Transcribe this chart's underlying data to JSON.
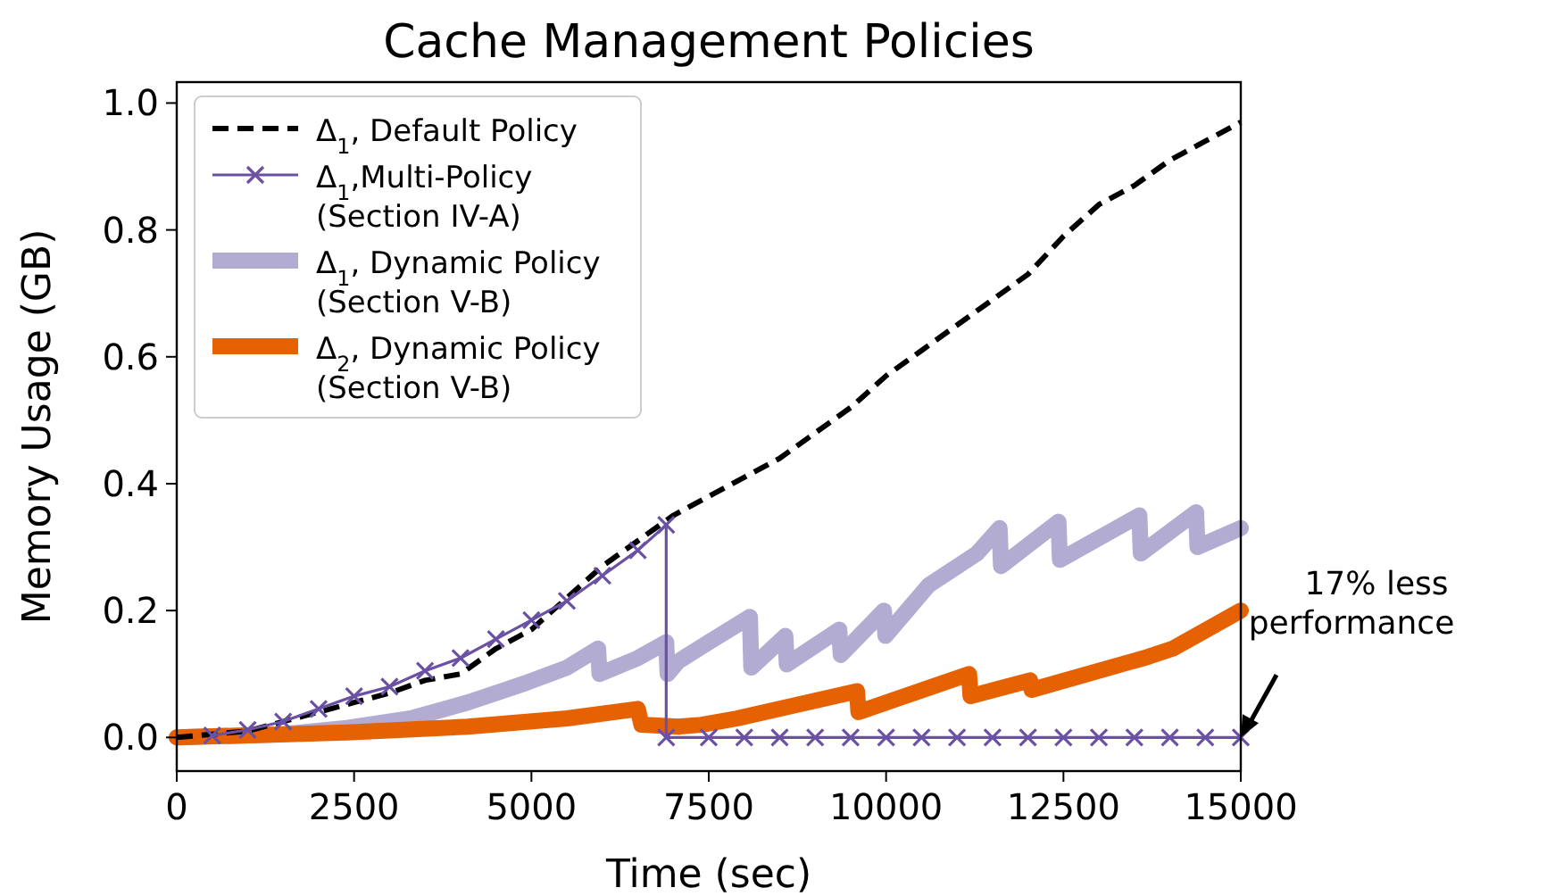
{
  "chart_data": {
    "type": "line",
    "title": "Cache Management Policies",
    "xlabel": "Time (sec)",
    "ylabel": "Memory Usage (GB)",
    "xlim": [
      0,
      15000
    ],
    "ylim": [
      -0.053,
      1.033
    ],
    "xticks": [
      0,
      2500,
      5000,
      7500,
      10000,
      12500,
      15000
    ],
    "yticks": [
      {
        "value": 0,
        "label": "0.0"
      },
      {
        "value": 0.2,
        "label": "0.2"
      },
      {
        "value": 0.4,
        "label": "0.4"
      },
      {
        "value": 0.6,
        "label": "0.6"
      },
      {
        "value": 0.8,
        "label": "0.8"
      },
      {
        "value": 1,
        "label": "1.0"
      }
    ],
    "grid": false,
    "legend": "top left",
    "annotations": [
      {
        "text": "17% less\nperformance",
        "x": 15000,
        "y": 0
      }
    ],
    "series": [
      {
        "name": "Δ$_{1}$, Default Policy",
        "color": "#000000",
        "line_style": "dashed",
        "marker": "none",
        "x": [
          0,
          1000,
          1500,
          2000,
          2500,
          3000,
          3500,
          4000,
          4500,
          5000,
          5500,
          6000,
          6500,
          7000,
          7500,
          8000,
          8500,
          9000,
          9500,
          10000,
          10500,
          11000,
          11500,
          12000,
          12500,
          13000,
          13500,
          14000,
          14500,
          15000
        ],
        "values": [
          0,
          0.01,
          0.025,
          0.04,
          0.055,
          0.07,
          0.09,
          0.1,
          0.14,
          0.17,
          0.22,
          0.27,
          0.31,
          0.35,
          0.38,
          0.41,
          0.44,
          0.48,
          0.52,
          0.57,
          0.61,
          0.65,
          0.69,
          0.73,
          0.79,
          0.84,
          0.87,
          0.91,
          0.94,
          0.97
        ]
      },
      {
        "name": "Δ$_{1}$,Multi-Policy\n(Section IV-A)",
        "color": "#6a51a3",
        "line_style": "solid",
        "marker": "cross",
        "x": [
          500,
          1000,
          1500,
          2000,
          2500,
          3000,
          3500,
          4000,
          4500,
          5000,
          5500,
          6000,
          6500,
          6900,
          6900,
          7500,
          8000,
          8500,
          9000,
          9500,
          10000,
          10500,
          11000,
          11500,
          12000,
          12500,
          13000,
          13500,
          14000,
          14500,
          15000
        ],
        "values": [
          0.003,
          0.012,
          0.025,
          0.045,
          0.065,
          0.08,
          0.105,
          0.125,
          0.155,
          0.185,
          0.215,
          0.255,
          0.295,
          0.335,
          0,
          0,
          0,
          0,
          0,
          0,
          0,
          0,
          0,
          0,
          0,
          0,
          0,
          0,
          0,
          0,
          0
        ]
      },
      {
        "name": "Δ$_{1}$, Dynamic Policy\n(Section V-B)",
        "color": "#b2abd2",
        "line_style": "solid",
        "marker": "none",
        "x": [
          0,
          1500,
          2400,
          3300,
          4100,
          4900,
          5500,
          5940,
          5960,
          6500,
          6900,
          6920,
          7070,
          7500,
          8080,
          8100,
          8580,
          8600,
          9340,
          9360,
          9970,
          9990,
          10600,
          11280,
          11600,
          11620,
          12430,
          12450,
          13570,
          13590,
          14370,
          14390,
          15000
        ],
        "values": [
          0,
          0.005,
          0.015,
          0.03,
          0.055,
          0.085,
          0.11,
          0.14,
          0.1,
          0.125,
          0.15,
          0.1,
          0.12,
          0.15,
          0.19,
          0.11,
          0.16,
          0.115,
          0.17,
          0.13,
          0.2,
          0.16,
          0.24,
          0.29,
          0.33,
          0.27,
          0.34,
          0.28,
          0.35,
          0.29,
          0.355,
          0.3,
          0.33
        ]
      },
      {
        "name": "Δ$_{2}$, Dynamic Policy\n(Section V-B)",
        "color": "#e66101",
        "line_style": "solid",
        "marker": "none",
        "x": [
          0,
          2400,
          4100,
          5500,
          6500,
          6550,
          7070,
          7400,
          7900,
          9590,
          9610,
          11170,
          11190,
          12030,
          12050,
          13690,
          14040,
          15000
        ],
        "values": [
          0,
          0.008,
          0.017,
          0.03,
          0.045,
          0.02,
          0.017,
          0.02,
          0.03,
          0.073,
          0.04,
          0.1,
          0.065,
          0.09,
          0.075,
          0.127,
          0.14,
          0.2
        ]
      }
    ]
  }
}
